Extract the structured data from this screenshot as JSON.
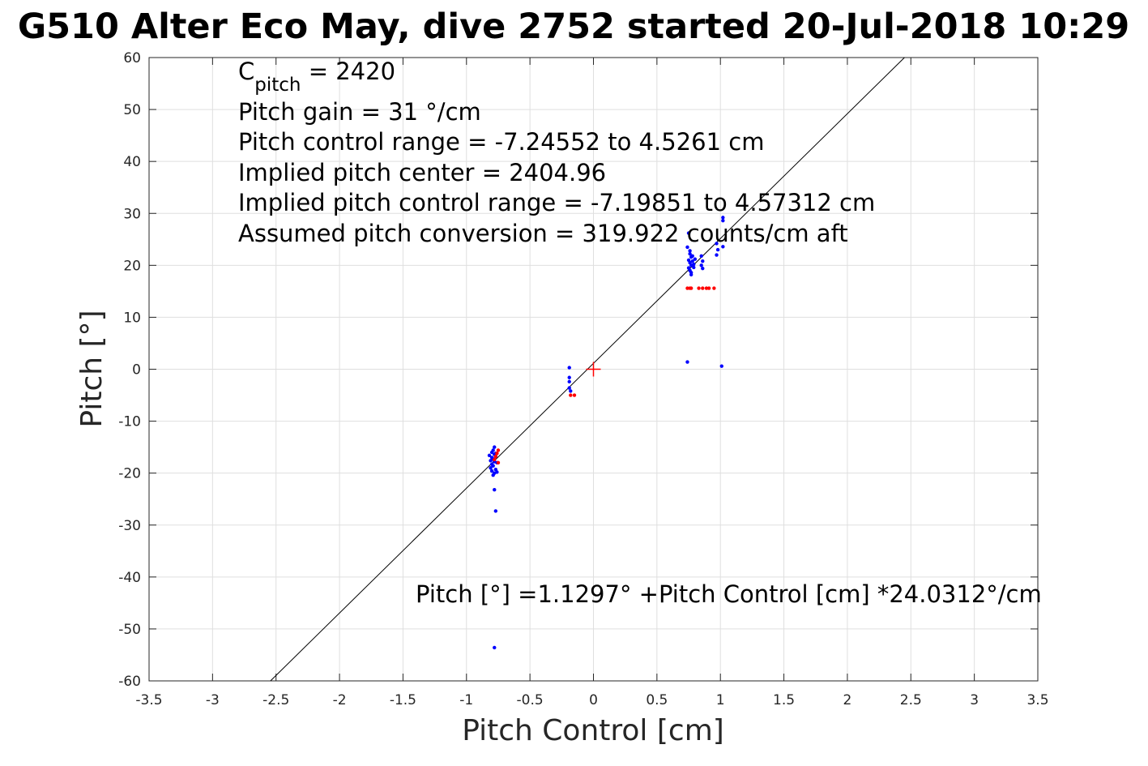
{
  "chart_data": {
    "type": "scatter",
    "title": "G510 Alter Eco May, dive 2752 started 20-Jul-2018 10:29",
    "xlabel": "Pitch Control [cm]",
    "ylabel": "Pitch [°]",
    "xlim": [
      -3.5,
      3.5
    ],
    "ylim": [
      -60,
      60
    ],
    "xticks": [
      -3.5,
      -3,
      -2.5,
      -2,
      -1.5,
      -1,
      -0.5,
      0,
      0.5,
      1,
      1.5,
      2,
      2.5,
      3,
      3.5
    ],
    "xtick_labels": [
      "-3.5",
      "-3",
      "-2.5",
      "-2",
      "-1.5",
      "-1",
      "-0.5",
      "0",
      "0.5",
      "1",
      "1.5",
      "2",
      "2.5",
      "3",
      "3.5"
    ],
    "yticks": [
      -60,
      -50,
      -40,
      -30,
      -20,
      -10,
      0,
      10,
      20,
      30,
      40,
      50,
      60
    ],
    "ytick_labels": [
      "-60",
      "-50",
      "-40",
      "-30",
      "-20",
      "-10",
      "0",
      "10",
      "20",
      "30",
      "40",
      "50",
      "60"
    ],
    "grid": true,
    "annotations": {
      "c_pitch_main": "C",
      "c_pitch_sub": "pitch",
      "c_pitch_rest": " = 2420",
      "lines": [
        "Pitch gain = 31 °/cm",
        "Pitch control range = -7.24552 to 4.5261 cm",
        "Implied pitch center = 2404.96",
        "Implied pitch control range = -7.19851 to 4.57312 cm",
        "Assumed pitch conversion = 319.922 counts/cm aft"
      ],
      "fit_equation": "Pitch [°] =1.1297° +Pitch Control [cm] *24.0312°/cm"
    },
    "fit_line": {
      "intercept": 1.1297,
      "slope": 24.0312,
      "color": "#000000"
    },
    "center_marker": {
      "x": 0,
      "y": 0,
      "color": "#ff0000"
    },
    "series": [
      {
        "color": "#0000ff",
        "points": [
          [
            -0.78,
            -15.0
          ],
          [
            -0.79,
            -15.6
          ],
          [
            -0.8,
            -16.0
          ],
          [
            -0.78,
            -16.4
          ],
          [
            -0.77,
            -16.8
          ],
          [
            -0.8,
            -17.0
          ],
          [
            -0.79,
            -17.3
          ],
          [
            -0.81,
            -17.6
          ],
          [
            -0.78,
            -17.8
          ],
          [
            -0.76,
            -18.0
          ],
          [
            -0.8,
            -18.3
          ],
          [
            -0.79,
            -18.6
          ],
          [
            -0.81,
            -19.0
          ],
          [
            -0.77,
            -19.3
          ],
          [
            -0.8,
            -19.6
          ],
          [
            -0.78,
            -20.0
          ],
          [
            -0.79,
            -20.4
          ],
          [
            -0.76,
            -19.8
          ],
          [
            -0.77,
            -16.2
          ],
          [
            -0.82,
            -16.6
          ],
          [
            -0.78,
            -23.2
          ],
          [
            -0.77,
            -27.3
          ],
          [
            -0.78,
            -53.6
          ],
          [
            -0.19,
            0.3
          ],
          [
            -0.19,
            -1.6
          ],
          [
            -0.19,
            -2.4
          ],
          [
            -0.19,
            -3.6
          ],
          [
            -0.18,
            -4.2
          ],
          [
            0.74,
            1.4
          ],
          [
            0.75,
            26.2
          ],
          [
            0.74,
            23.5
          ],
          [
            0.76,
            22.2
          ],
          [
            0.77,
            21.6
          ],
          [
            0.75,
            21.0
          ],
          [
            0.76,
            20.5
          ],
          [
            0.77,
            20.0
          ],
          [
            0.75,
            19.5
          ],
          [
            0.76,
            19.0
          ],
          [
            0.77,
            18.6
          ],
          [
            0.78,
            21.8
          ],
          [
            0.78,
            20.8
          ],
          [
            0.79,
            20.2
          ],
          [
            0.79,
            19.6
          ],
          [
            0.8,
            21.2
          ],
          [
            0.76,
            22.8
          ],
          [
            0.77,
            18.2
          ],
          [
            0.85,
            21.8
          ],
          [
            0.86,
            20.8
          ],
          [
            0.85,
            20.0
          ],
          [
            0.86,
            19.4
          ],
          [
            0.97,
            24.2
          ],
          [
            0.98,
            23.0
          ],
          [
            0.97,
            22.0
          ],
          [
            1.02,
            29.2
          ],
          [
            1.02,
            28.6
          ],
          [
            1.02,
            23.6
          ],
          [
            1.01,
            0.6
          ]
        ]
      },
      {
        "color": "#ff0000",
        "points": [
          [
            -0.75,
            -15.6
          ],
          [
            -0.76,
            -16.2
          ],
          [
            -0.77,
            -16.8
          ],
          [
            -0.78,
            -17.4
          ],
          [
            -0.75,
            -18.0
          ],
          [
            -0.18,
            -5.0
          ],
          [
            -0.15,
            -5.0
          ],
          [
            0.74,
            15.6
          ],
          [
            0.76,
            15.6
          ],
          [
            0.77,
            15.6
          ],
          [
            0.83,
            15.6
          ],
          [
            0.86,
            15.6
          ],
          [
            0.89,
            15.6
          ],
          [
            0.91,
            15.6
          ],
          [
            0.95,
            15.6
          ]
        ]
      }
    ]
  }
}
